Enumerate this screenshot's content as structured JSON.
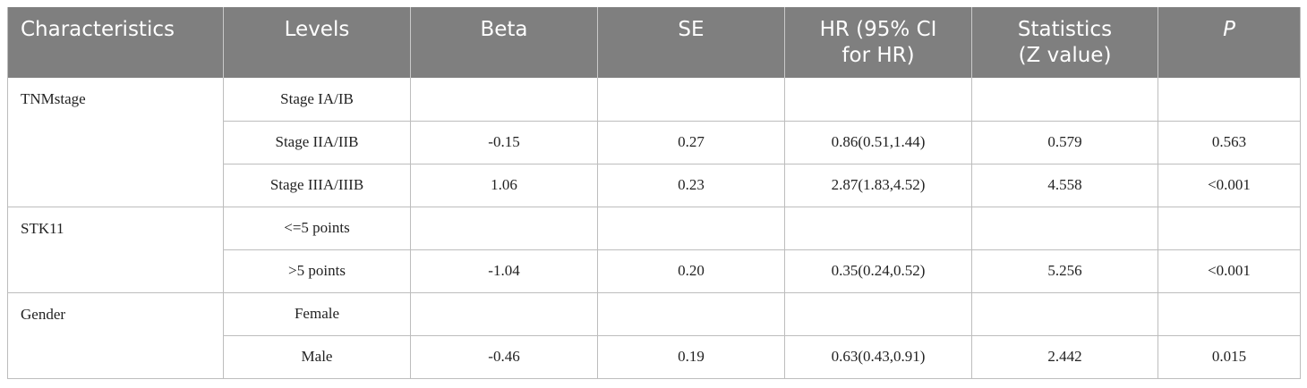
{
  "header": {
    "characteristics": "Characteristics",
    "levels": "Levels",
    "beta": "Beta",
    "se": "SE",
    "hr_line1": "HR (95% CI",
    "hr_line2": "for HR)",
    "stat_line1": "Statistics",
    "stat_line2": "(Z value)",
    "p": "P"
  },
  "groups": [
    {
      "name": "TNMstage",
      "rows": [
        {
          "level": "Stage IA/IB",
          "beta": "",
          "se": "",
          "hr": "",
          "z": "",
          "p": ""
        },
        {
          "level": "Stage IIA/IIB",
          "beta": "-0.15",
          "se": "0.27",
          "hr": "0.86(0.51,1.44)",
          "z": "0.579",
          "p": "0.563"
        },
        {
          "level": "Stage IIIA/IIIB",
          "beta": "1.06",
          "se": "0.23",
          "hr": "2.87(1.83,4.52)",
          "z": "4.558",
          "p": "<0.001"
        }
      ]
    },
    {
      "name": "STK11",
      "rows": [
        {
          "level": "<=5 points",
          "beta": "",
          "se": "",
          "hr": "",
          "z": "",
          "p": ""
        },
        {
          "level": ">5 points",
          "beta": "-1.04",
          "se": "0.20",
          "hr": "0.35(0.24,0.52)",
          "z": "5.256",
          "p": "<0.001"
        }
      ]
    },
    {
      "name": "Gender",
      "rows": [
        {
          "level": "Female",
          "beta": "",
          "se": "",
          "hr": "",
          "z": "",
          "p": ""
        },
        {
          "level": "Male",
          "beta": "-0.46",
          "se": "0.19",
          "hr": "0.63(0.43,0.91)",
          "z": "2.442",
          "p": "0.015"
        }
      ]
    }
  ]
}
